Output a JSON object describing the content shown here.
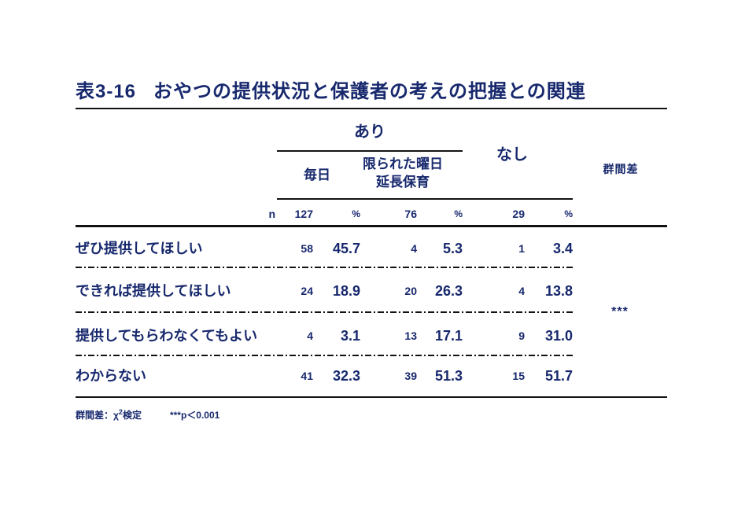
{
  "colors": {
    "text_navy": "#17286d",
    "rule_black": "#121212",
    "background": "#ffffff"
  },
  "title": {
    "prefix": "表3-16",
    "main": "おやつの提供状況と保護者の考えの把握との関連"
  },
  "header": {
    "group_ari": "あり",
    "group_nashi": "なし",
    "col_mainichi": "毎日",
    "col_kagirareta_line1": "限られた曜日",
    "col_kagirareta_line2": "延長保育",
    "col_gunkansa": "群間差",
    "n_label": "n",
    "n_ari_mainichi": "127",
    "n_ari_kagirareta": "76",
    "n_nashi": "29",
    "pct_symbol": "%"
  },
  "rows": [
    {
      "label": "ぜひ提供してほしい",
      "c1n": "58",
      "c1p": "45.7",
      "c2n": "4",
      "c2p": "5.3",
      "c3n": "1",
      "c3p": "3.4"
    },
    {
      "label": "できれば提供してほしい",
      "c1n": "24",
      "c1p": "18.9",
      "c2n": "20",
      "c2p": "26.3",
      "c3n": "4",
      "c3p": "13.8"
    },
    {
      "label": "提供してもらわなくてもよい",
      "c1n": "4",
      "c1p": "3.1",
      "c2n": "13",
      "c2p": "17.1",
      "c3n": "9",
      "c3p": "31.0"
    },
    {
      "label": "わからない",
      "c1n": "41",
      "c1p": "32.3",
      "c2n": "39",
      "c2p": "51.3",
      "c3n": "15",
      "c3p": "51.7"
    }
  ],
  "significance": "***",
  "footnote": {
    "test_pre": "群間差：χ",
    "test_sup": "2",
    "test_post": "検定",
    "p_value": "***p＜0.001"
  }
}
